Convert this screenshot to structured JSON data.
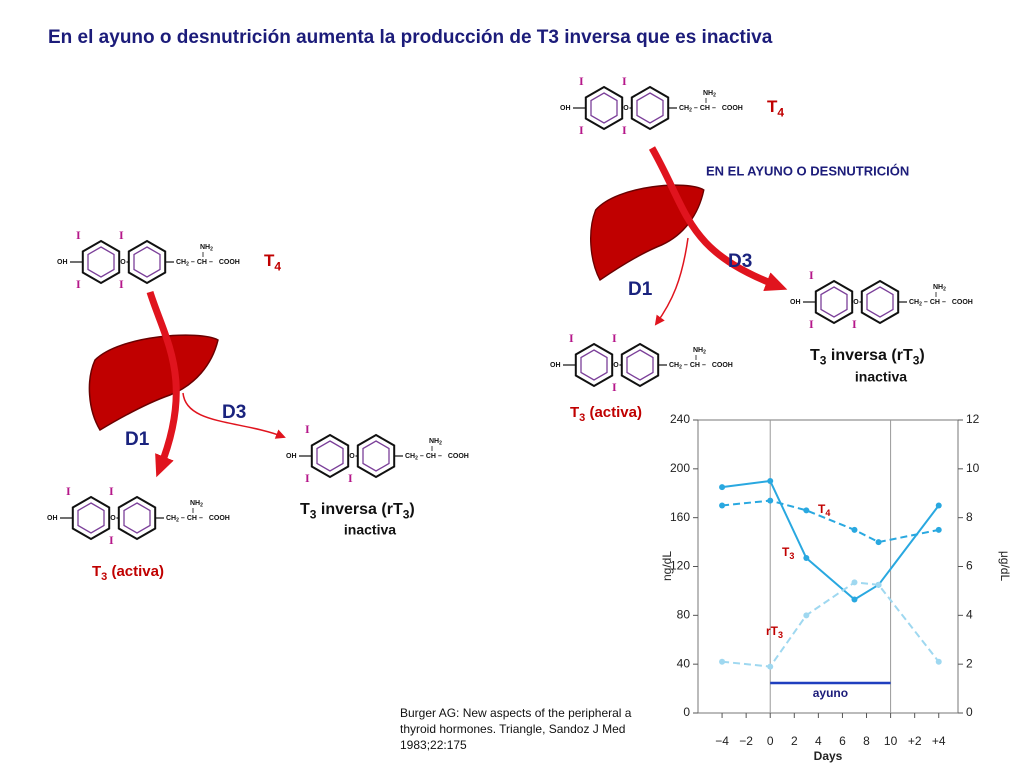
{
  "title": "En el ayuno o desnutrición aumenta la producción de T3 inversa que es inactiva",
  "molecule": {
    "hydroxyl": "OH",
    "ether": "O",
    "methylene": [
      "CH",
      "2"
    ],
    "bond": "–",
    "methine": "CH",
    "carboxyl": "COOH",
    "amine": [
      "NH",
      "2"
    ],
    "iodine": "I"
  },
  "normal_path": {
    "substrate": [
      "T",
      "4"
    ],
    "d1": "D1",
    "d3": "D3",
    "d1_product": [
      "T",
      "3",
      " (activa)"
    ],
    "d3_product": [
      "T",
      "3",
      " inversa (rT",
      "3",
      ")"
    ],
    "d3_note": "inactiva"
  },
  "fasting_path": {
    "condition": "EN EL AYUNO O DESNUTRICIÓN",
    "substrate": [
      "T",
      "4"
    ],
    "d1": "D1",
    "d3": "D3",
    "d1_product": [
      "T",
      "3",
      " (activa)"
    ],
    "d3_product": [
      "T",
      "3",
      " inversa (rT",
      "3",
      ")"
    ],
    "d3_note": "inactiva"
  },
  "citation": [
    "Burger AG: New aspects of the peripheral a",
    "thyroid hormones. Triangle, Sandoz J Med",
    "1983;22:175"
  ],
  "chart_data": {
    "type": "line",
    "x_label": "Days",
    "y_label": "ng/dL",
    "y2_label": "μg/dL",
    "xlim": [
      -6,
      15.6
    ],
    "xticks": [
      {
        "value": -4,
        "label": "−4"
      },
      {
        "value": -2,
        "label": "−2"
      },
      0,
      2,
      4,
      6,
      8,
      10,
      {
        "value": 12,
        "label": "+2"
      },
      {
        "value": 14,
        "label": "+4"
      }
    ],
    "ylim": [
      0,
      240
    ],
    "yticks": [
      0,
      40,
      80,
      120,
      160,
      200,
      240
    ],
    "y2lim": [
      0,
      12
    ],
    "y2ticks": [
      0,
      2,
      4,
      6,
      8,
      10,
      12
    ],
    "x": [
      -4,
      0,
      3,
      7,
      9,
      14
    ],
    "series": [
      {
        "name": [
          "T",
          "3"
        ],
        "color": "#29a8e0",
        "dash": false,
        "values": [
          185,
          190,
          127,
          93,
          105,
          170
        ]
      },
      {
        "name": [
          "T",
          "4"
        ],
        "color": "#29a8e0",
        "dash": true,
        "axis": "y2",
        "values": [
          8.5,
          8.7,
          8.3,
          7.5,
          7.0,
          7.5
        ]
      },
      {
        "name": [
          "rT",
          "3"
        ],
        "color": "#9fd8f0",
        "dash": true,
        "values": [
          42,
          38,
          80,
          107,
          105,
          42
        ]
      }
    ],
    "annotation": {
      "label": "ayuno",
      "span": [
        0,
        10
      ]
    }
  }
}
